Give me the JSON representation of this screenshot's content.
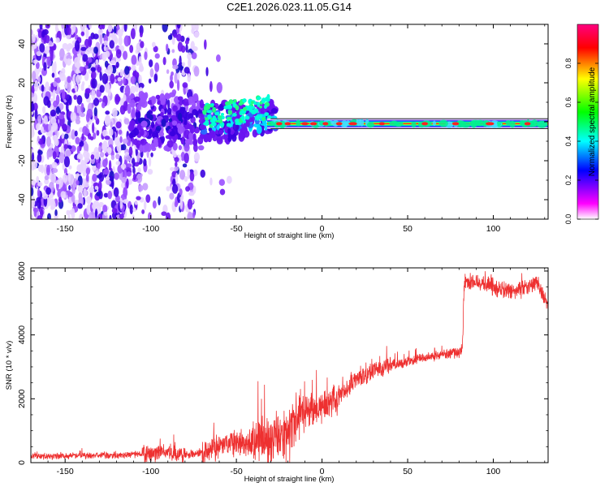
{
  "title": "C2E1.2026.023.11.05.G14",
  "chart_data": [
    {
      "type": "heatmap",
      "name": "spectrogram",
      "xlabel": "Height of straight line (km)",
      "ylabel": "Frequency (Hz)",
      "xlim": [
        -170,
        132
      ],
      "ylim": [
        -50,
        50
      ],
      "xticks": [
        -150,
        -100,
        -50,
        0,
        50,
        100
      ],
      "yticks": [
        -40,
        -20,
        0,
        20,
        40
      ],
      "colorbar": {
        "label": "Normalized spectral amplitude",
        "range": [
          0,
          1
        ],
        "ticks": [
          0.0,
          0.2,
          0.4,
          0.6,
          0.8
        ],
        "colors": [
          "#ffffff",
          "#ff00ff",
          "#0000ff",
          "#00ffff",
          "#00ff00",
          "#ffff00",
          "#ff0000",
          "#ff0080"
        ]
      },
      "tone": {
        "frequency_hz": -1,
        "description": "narrow carrier line near 0 Hz from about -30 km to 132 km"
      }
    },
    {
      "type": "line",
      "name": "snr",
      "xlabel": "Height of straight line (km)",
      "ylabel": "SNR (10 * v/v)",
      "xlim": [
        -170,
        132
      ],
      "ylim": [
        0,
        6100
      ],
      "xticks": [
        -150,
        -100,
        -50,
        0,
        50,
        100
      ],
      "yticks": [
        0,
        2000,
        4000,
        6000
      ],
      "color": "#ee3030",
      "series": [
        {
          "name": "SNR",
          "x": [
            -170,
            -150,
            -120,
            -100,
            -90,
            -80,
            -70,
            -60,
            -50,
            -40,
            -30,
            -20,
            -15,
            -10,
            0,
            10,
            20,
            30,
            40,
            50,
            60,
            70,
            80,
            82,
            83,
            90,
            100,
            110,
            120,
            125,
            132
          ],
          "y": [
            200,
            210,
            230,
            280,
            320,
            260,
            300,
            550,
            620,
            700,
            750,
            900,
            1400,
            1700,
            1700,
            2050,
            2600,
            2900,
            3050,
            3150,
            3300,
            3400,
            3450,
            3550,
            5600,
            5700,
            5500,
            5350,
            5450,
            5700,
            4950
          ]
        }
      ]
    }
  ]
}
